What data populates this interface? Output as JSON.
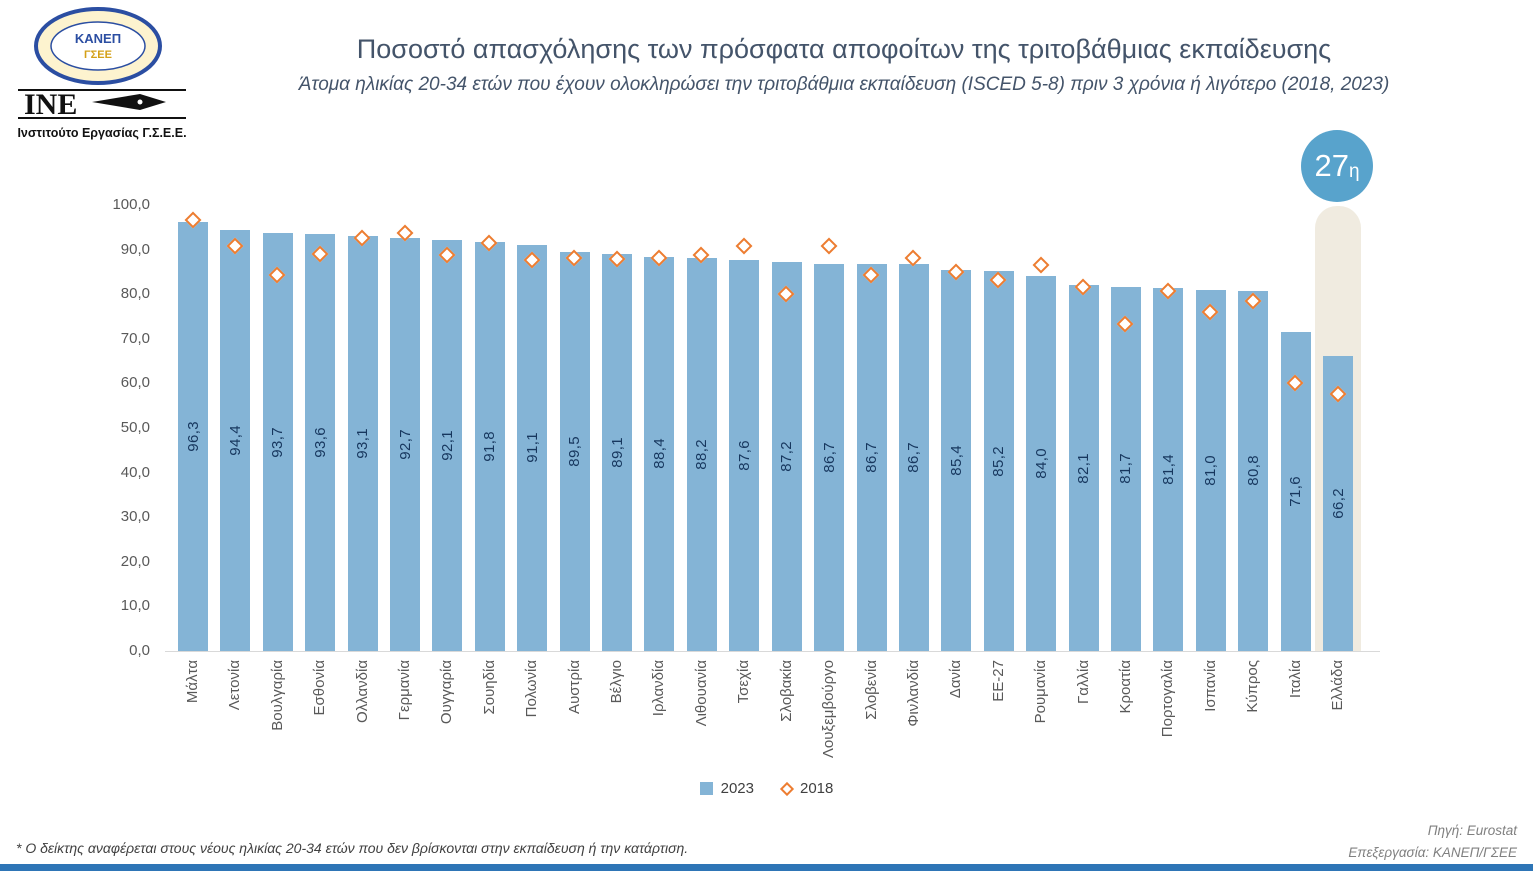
{
  "logo": {
    "emblem_top": "ΚΑΝΕΠ",
    "emblem_bottom": "ΓΣΕΕ",
    "acronym": "INE",
    "org_name": "Ινστιτούτο Εργασίας Γ.Σ.Ε.Ε."
  },
  "header": {
    "title": "Ποσοστό απασχόλησης των πρόσφατα αποφοίτων της τριτοβάθμιας εκπαίδευσης",
    "subtitle": "Άτομα ηλικίας 20-34 ετών που έχουν ολοκληρώσει την τριτοβάθμια εκπαίδευση (ISCED 5-8) πριν 3 χρόνια ή λιγότερο (2018, 2023)"
  },
  "badge": {
    "rank": "27",
    "suffix": "η"
  },
  "legend": {
    "items": [
      {
        "label": "2023"
      },
      {
        "label": "2018"
      }
    ]
  },
  "footer": {
    "note": "* Ο δείκτης αναφέρεται στους νέους ηλικίας 20-34 ετών που δεν βρίσκονται στην εκπαίδευση ή την κατάρτιση.",
    "source": "Πηγή: Eurostat",
    "processing": "Επεξεργασία: ΚΑΝΕΠ/ΓΣΕΕ"
  },
  "chart_data": {
    "type": "bar",
    "title": "Ποσοστό απασχόλησης των πρόσφατα αποφοίτων της τριτοβάθμιας εκπαίδευσης",
    "subtitle": "Άτομα ηλικίας 20-34 ετών που έχουν ολοκληρώσει την τριτοβάθμια εκπαίδευση (ISCED 5-8) πριν 3 χρόνια ή λιγότερο (2018, 2023)",
    "categories": [
      "Μάλτα",
      "Λετονία",
      "Βουλγαρία",
      "Εσθονία",
      "Ολλανδία",
      "Γερμανία",
      "Ουγγαρία",
      "Σουηδία",
      "Πολωνία",
      "Αυστρία",
      "Βέλγιο",
      "Ιρλανδία",
      "Λιθουανία",
      "Τσεχία",
      "Σλοβακία",
      "Λουξεμβούργο",
      "Σλοβενία",
      "Φινλανδία",
      "Δανία",
      "ΕΕ-27",
      "Ρουμανία",
      "Γαλλία",
      "Κροατία",
      "Πορτογαλία",
      "Ισπανία",
      "Κύπρος",
      "Ιταλία",
      "Ελλάδα"
    ],
    "series": [
      {
        "name": "2023",
        "type": "bar",
        "values": [
          96.3,
          94.4,
          93.7,
          93.6,
          93.1,
          92.7,
          92.1,
          91.8,
          91.1,
          89.5,
          89.1,
          88.4,
          88.2,
          87.6,
          87.2,
          86.7,
          86.7,
          86.7,
          85.4,
          85.2,
          84.0,
          82.1,
          81.7,
          81.4,
          81.0,
          80.8,
          71.6,
          66.2
        ],
        "labels": [
          "96,3",
          "94,4",
          "93,7",
          "93,6",
          "93,1",
          "92,7",
          "92,1",
          "91,8",
          "91,1",
          "89,5",
          "89,1",
          "88,4",
          "88,2",
          "87,6",
          "87,2",
          "86,7",
          "86,7",
          "86,7",
          "85,4",
          "85,2",
          "84,0",
          "82,1",
          "81,7",
          "81,4",
          "81,0",
          "80,8",
          "71,6",
          "66,2"
        ]
      },
      {
        "name": "2018",
        "type": "scatter",
        "marker": "diamond",
        "values": [
          96.5,
          90.8,
          84.2,
          89.0,
          92.6,
          93.7,
          88.6,
          91.4,
          87.5,
          88.0,
          87.7,
          88.0,
          88.6,
          90.8,
          80.0,
          90.7,
          84.1,
          88.1,
          84.8,
          83.0,
          86.4,
          81.4,
          73.2,
          80.6,
          76.0,
          78.4,
          60.0,
          57.5
        ]
      }
    ],
    "ylim": [
      0,
      100
    ],
    "ytick_step": 10,
    "ytick_labels": [
      "0,0",
      "10,0",
      "20,0",
      "30,0",
      "40,0",
      "50,0",
      "60,0",
      "70,0",
      "80,0",
      "90,0",
      "100,0"
    ],
    "grid": false,
    "legend_position": "bottom",
    "highlight_category": "Ελλάδα",
    "highlight_rank_label": "27η",
    "colors": {
      "bar": "#84b4d6",
      "diamond": "#ED7D31",
      "bar_label": "#17375E",
      "highlight_band": "#f0ebe0",
      "badge": "#58a3cc",
      "title": "#44546A",
      "bottom_strip": "#2E75B6"
    }
  }
}
